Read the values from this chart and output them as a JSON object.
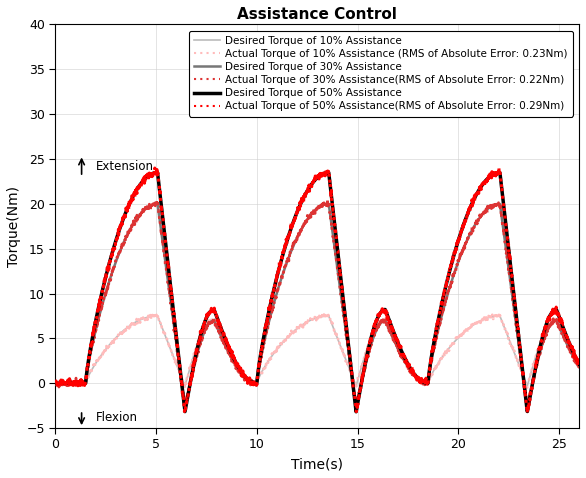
{
  "title": "Assistance Control",
  "xlabel": "Time(s)",
  "ylabel": "Torque(Nm)",
  "xlim": [
    0,
    26
  ],
  "ylim": [
    -5,
    40
  ],
  "yticks": [
    -5,
    0,
    5,
    10,
    15,
    20,
    25,
    30,
    35,
    40
  ],
  "xticks": [
    0,
    5,
    10,
    15,
    20,
    25
  ],
  "legend": [
    {
      "label": "Desired Torque of 10% Assistance",
      "color": "#bbbbbb",
      "lw": 1.2,
      "ls": "solid"
    },
    {
      "label": "Actual Torque of 10% Assistance (RMS of Absolute Error: 0.23Nm)",
      "color": "#ffbbbb",
      "lw": 1.5,
      "ls": "dotted"
    },
    {
      "label": "Desired Torque of 30% Assistance",
      "color": "#777777",
      "lw": 1.8,
      "ls": "solid"
    },
    {
      "label": "Actual Torque of 30% Assistance(RMS of Absolute Error: 0.22Nm)",
      "color": "#dd3333",
      "lw": 1.5,
      "ls": "dotted"
    },
    {
      "label": "Desired Torque of 50% Assistance",
      "color": "#000000",
      "lw": 2.5,
      "ls": "solid"
    },
    {
      "label": "Actual Torque of 50% Assistance(RMS of Absolute Error: 0.29Nm)",
      "color": "#ff0000",
      "lw": 1.5,
      "ls": "dotted"
    }
  ],
  "peak10": 7.5,
  "peak30": 20.0,
  "peak50": 23.5,
  "trough10": -0.3,
  "trough30": -2.7,
  "trough50": -3.2,
  "flat_end": 1.5,
  "period": 8.5,
  "title_fontsize": 11,
  "label_fontsize": 10,
  "legend_fontsize": 7.5,
  "background_color": "#ffffff"
}
